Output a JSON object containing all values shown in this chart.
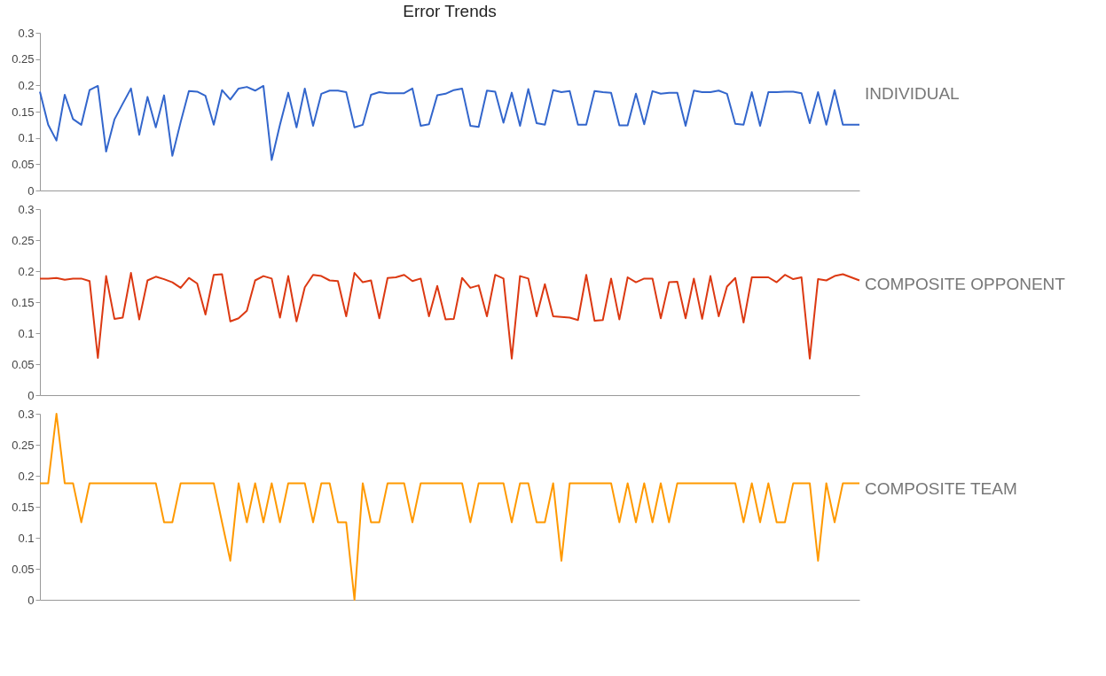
{
  "chart_data": [
    {
      "type": "line",
      "title": "Error Trends",
      "categories": [
        null,
        null,
        null,
        null,
        null,
        null,
        null,
        null,
        null,
        null,
        null,
        null,
        null,
        null,
        null,
        null,
        null,
        null,
        null,
        null,
        null,
        null,
        null,
        null,
        null,
        null,
        null,
        null,
        null,
        null,
        null,
        null,
        null,
        null,
        null,
        null,
        null,
        null,
        null,
        null,
        null,
        null,
        null,
        null,
        null,
        null,
        null,
        null,
        null,
        null,
        null,
        null,
        null,
        null,
        null,
        null,
        null,
        null,
        null,
        null,
        null,
        null,
        null,
        null,
        null,
        null,
        null,
        null,
        null,
        null,
        null,
        null,
        null,
        null,
        null,
        null,
        null,
        null,
        null,
        null,
        null,
        null,
        null,
        null,
        null,
        null,
        null,
        null,
        null,
        null,
        null,
        null,
        null,
        null,
        null,
        null,
        null,
        null,
        null,
        null
      ],
      "ylim": [
        0,
        0.3
      ],
      "yticks": [
        0,
        0.05,
        0.1,
        0.15,
        0.2,
        0.25,
        0.3
      ],
      "series": [
        {
          "name": "INDIVIDUAL",
          "color": "#3366cc",
          "values": [
            0.188,
            0.125,
            0.095,
            0.182,
            0.136,
            0.125,
            0.191,
            0.199,
            0.074,
            0.135,
            0.165,
            0.194,
            0.106,
            0.178,
            0.12,
            0.181,
            0.066,
            0.13,
            0.189,
            0.188,
            0.18,
            0.125,
            0.191,
            0.173,
            0.194,
            0.197,
            0.19,
            0.199,
            0.058,
            0.125,
            0.186,
            0.12,
            0.194,
            0.123,
            0.184,
            0.19,
            0.19,
            0.187,
            0.12,
            0.125,
            0.182,
            0.187,
            0.185,
            0.185,
            0.185,
            0.194,
            0.123,
            0.126,
            0.181,
            0.184,
            0.191,
            0.194,
            0.123,
            0.121,
            0.19,
            0.188,
            0.129,
            0.186,
            0.123,
            0.193,
            0.128,
            0.125,
            0.191,
            0.187,
            0.189,
            0.125,
            0.125,
            0.189,
            0.187,
            0.186,
            0.124,
            0.124,
            0.184,
            0.126,
            0.189,
            0.184,
            0.186,
            0.186,
            0.123,
            0.19,
            0.187,
            0.187,
            0.19,
            0.184,
            0.127,
            0.125,
            0.187,
            0.123,
            0.187,
            0.187,
            0.188,
            0.188,
            0.185,
            0.128,
            0.187,
            0.125,
            0.191,
            0.125,
            0.125,
            0.125
          ]
        }
      ]
    },
    {
      "type": "line",
      "categories": [
        null,
        null,
        null,
        null,
        null,
        null,
        null,
        null,
        null,
        null,
        null,
        null,
        null,
        null,
        null,
        null,
        null,
        null,
        null,
        null,
        null,
        null,
        null,
        null,
        null,
        null,
        null,
        null,
        null,
        null,
        null,
        null,
        null,
        null,
        null,
        null,
        null,
        null,
        null,
        null,
        null,
        null,
        null,
        null,
        null,
        null,
        null,
        null,
        null,
        null,
        null,
        null,
        null,
        null,
        null,
        null,
        null,
        null,
        null,
        null,
        null,
        null,
        null,
        null,
        null,
        null,
        null,
        null,
        null,
        null,
        null,
        null,
        null,
        null,
        null,
        null,
        null,
        null,
        null,
        null,
        null,
        null,
        null,
        null,
        null,
        null,
        null,
        null,
        null,
        null,
        null,
        null,
        null,
        null,
        null,
        null,
        null,
        null,
        null,
        null
      ],
      "ylim": [
        0,
        0.3
      ],
      "yticks": [
        0,
        0.05,
        0.1,
        0.15,
        0.2,
        0.25,
        0.3
      ],
      "series": [
        {
          "name": "COMPOSITE OPPONENT",
          "color": "#dc3912",
          "values": [
            0.188,
            0.188,
            0.189,
            0.186,
            0.188,
            0.188,
            0.184,
            0.06,
            0.192,
            0.123,
            0.125,
            0.197,
            0.122,
            0.185,
            0.191,
            0.187,
            0.182,
            0.173,
            0.189,
            0.18,
            0.13,
            0.194,
            0.195,
            0.119,
            0.124,
            0.136,
            0.185,
            0.192,
            0.188,
            0.125,
            0.192,
            0.119,
            0.174,
            0.194,
            0.192,
            0.185,
            0.184,
            0.127,
            0.197,
            0.182,
            0.185,
            0.124,
            0.189,
            0.19,
            0.194,
            0.184,
            0.188,
            0.127,
            0.176,
            0.122,
            0.123,
            0.189,
            0.173,
            0.177,
            0.127,
            0.194,
            0.188,
            0.059,
            0.192,
            0.188,
            0.127,
            0.179,
            0.127,
            0.126,
            0.125,
            0.121,
            0.194,
            0.12,
            0.121,
            0.188,
            0.122,
            0.19,
            0.182,
            0.188,
            0.188,
            0.124,
            0.182,
            0.183,
            0.124,
            0.188,
            0.123,
            0.192,
            0.127,
            0.175,
            0.189,
            0.117,
            0.19,
            0.19,
            0.19,
            0.182,
            0.194,
            0.187,
            0.19,
            0.059,
            0.187,
            0.185,
            0.192,
            0.195,
            0.19,
            0.185
          ]
        }
      ]
    },
    {
      "type": "line",
      "categories": [
        null,
        null,
        null,
        null,
        null,
        null,
        null,
        null,
        null,
        null,
        null,
        null,
        null,
        null,
        null,
        null,
        null,
        null,
        null,
        null,
        null,
        null,
        null,
        null,
        null,
        null,
        null,
        null,
        null,
        null,
        null,
        null,
        null,
        null,
        null,
        null,
        null,
        null,
        null,
        null,
        null,
        null,
        null,
        null,
        null,
        null,
        null,
        null,
        null,
        null,
        null,
        null,
        null,
        null,
        null,
        null,
        null,
        null,
        null,
        null,
        null,
        null,
        null,
        null,
        null,
        null,
        null,
        null,
        null,
        null,
        null,
        null,
        null,
        null,
        null,
        null,
        null,
        null,
        null,
        null,
        null,
        null,
        null,
        null,
        null,
        null,
        null,
        null,
        null,
        null,
        null,
        null,
        null,
        null,
        null,
        null,
        null,
        null,
        null,
        null
      ],
      "ylim": [
        0,
        0.3
      ],
      "yticks": [
        0,
        0.05,
        0.1,
        0.15,
        0.2,
        0.25,
        0.3
      ],
      "series": [
        {
          "name": "COMPOSITE TEAM",
          "color": "#ff9900",
          "values": [
            0.188,
            0.188,
            0.3,
            0.188,
            0.188,
            0.125,
            0.188,
            0.188,
            0.188,
            0.188,
            0.188,
            0.188,
            0.188,
            0.188,
            0.188,
            0.125,
            0.125,
            0.188,
            0.188,
            0.188,
            0.188,
            0.188,
            0.125,
            0.063,
            0.188,
            0.125,
            0.188,
            0.125,
            0.188,
            0.125,
            0.188,
            0.188,
            0.188,
            0.125,
            0.188,
            0.188,
            0.125,
            0.125,
            0,
            0.188,
            0.125,
            0.125,
            0.188,
            0.188,
            0.188,
            0.125,
            0.188,
            0.188,
            0.188,
            0.188,
            0.188,
            0.188,
            0.125,
            0.188,
            0.188,
            0.188,
            0.188,
            0.125,
            0.188,
            0.188,
            0.125,
            0.125,
            0.188,
            0.063,
            0.188,
            0.188,
            0.188,
            0.188,
            0.188,
            0.188,
            0.125,
            0.188,
            0.125,
            0.188,
            0.125,
            0.188,
            0.125,
            0.188,
            0.188,
            0.188,
            0.188,
            0.188,
            0.188,
            0.188,
            0.188,
            0.125,
            0.188,
            0.125,
            0.188,
            0.125,
            0.125,
            0.188,
            0.188,
            0.188,
            0.063,
            0.188,
            0.125,
            0.188,
            0.188,
            0.188
          ]
        }
      ]
    }
  ]
}
